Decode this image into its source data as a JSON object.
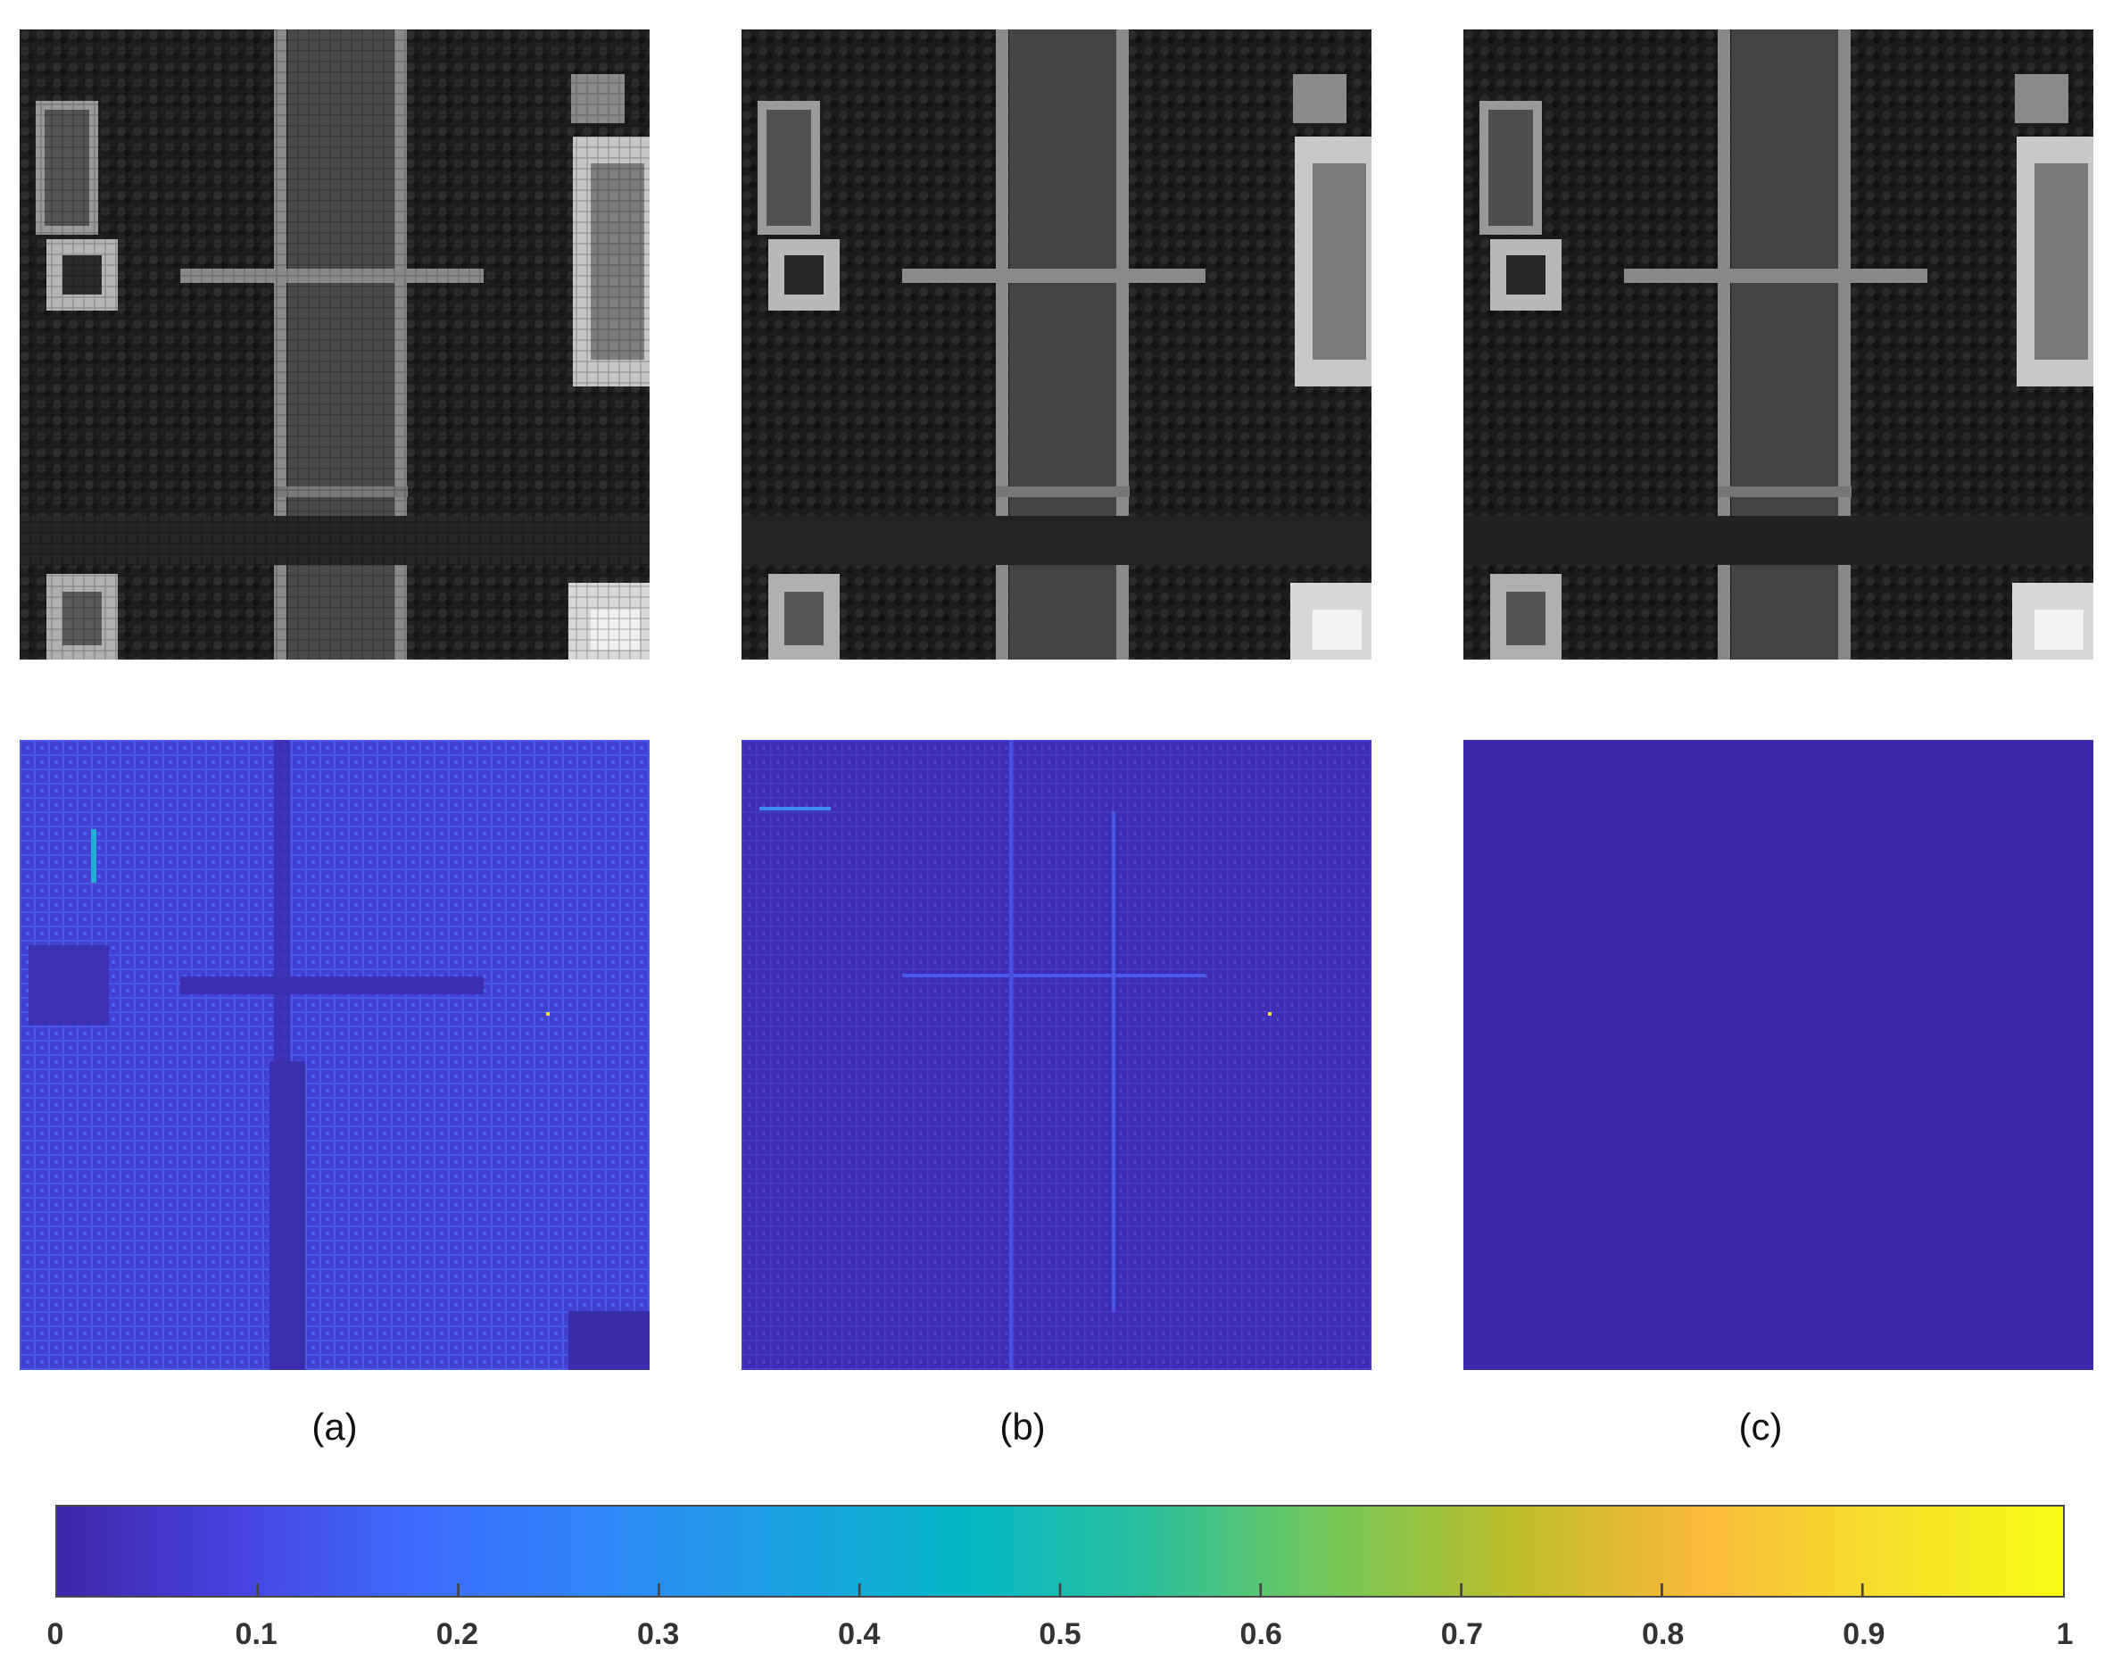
{
  "captions": {
    "a": "(a)",
    "b": "(b)",
    "c": "(c)"
  },
  "colorbar": {
    "colormap": "parula",
    "range": [
      0,
      1
    ],
    "ticks": [
      "0",
      "0.1",
      "0.2",
      "0.3",
      "0.4",
      "0.5",
      "0.6",
      "0.7",
      "0.8",
      "0.9",
      "1"
    ],
    "stops": [
      "#3e26a8",
      "#4743e0",
      "#3d6cfe",
      "#2e87f7",
      "#1ca1e2",
      "#05b7c6",
      "#2cc09b",
      "#76c857",
      "#bdbd2a",
      "#fbb93c",
      "#f5df2c",
      "#f9fb14"
    ]
  },
  "panels": {
    "top_row": "grayscale aerial images",
    "bottom_row": "error maps",
    "error_c_color": "#3b28a6"
  }
}
